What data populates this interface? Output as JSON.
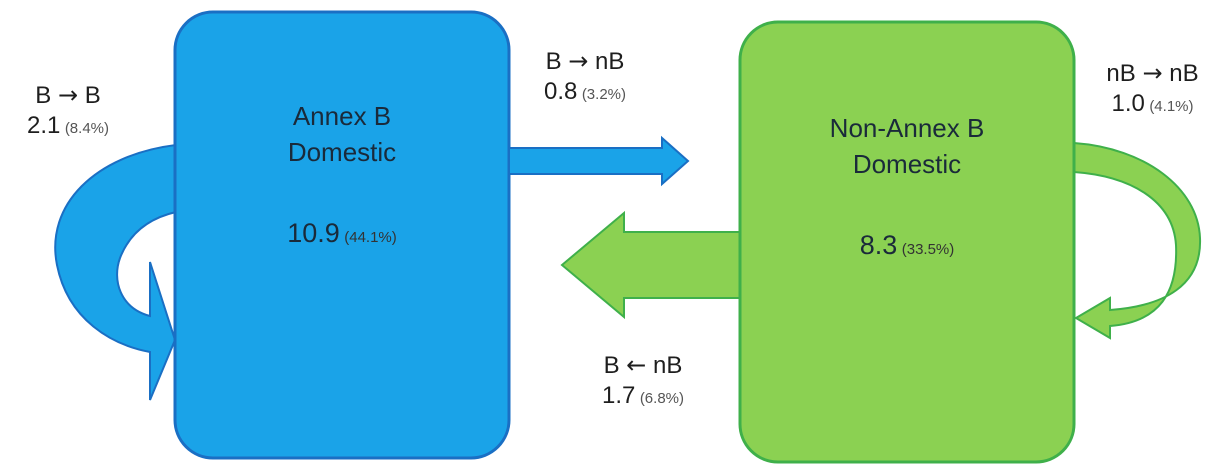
{
  "colors": {
    "annex_b_fill": "#1aa3e8",
    "annex_b_stroke": "#1a6fc4",
    "non_annex_b_fill": "#8bd152",
    "non_annex_b_stroke": "#3fb04a"
  },
  "boxes": {
    "annex_b": {
      "title_line1": "Annex B",
      "title_line2": "Domestic",
      "value": "10.9",
      "pct": "(44.1%)"
    },
    "non_annex_b": {
      "title_line1": "Non-Annex B",
      "title_line2": "Domestic",
      "value": "8.3",
      "pct": "(33.5%)"
    }
  },
  "flows": {
    "b_to_b": {
      "from": "B",
      "arrow": "→",
      "to": "B",
      "value": "2.1",
      "pct": "(8.4%)"
    },
    "b_to_nb": {
      "from": "B",
      "arrow": "→",
      "to": "nB",
      "value": "0.8",
      "pct": "(3.2%)"
    },
    "nb_to_nb": {
      "from": "nB",
      "arrow": "→",
      "to": "nB",
      "value": "1.0",
      "pct": "(4.1%)"
    },
    "nb_to_b": {
      "from": "B",
      "arrow": "←",
      "to": "nB",
      "value": "1.7",
      "pct": "(6.8%)"
    }
  }
}
